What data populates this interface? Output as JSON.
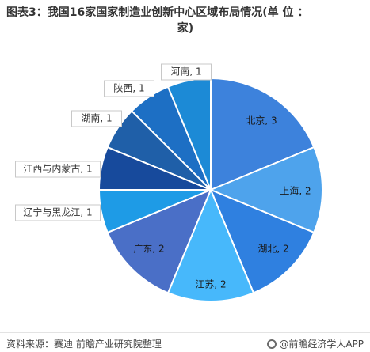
{
  "title_line1": "图表3：我国16家国家制造业创新中心区域布局情况(单 位 ：",
  "title_line2": "家)",
  "footer": {
    "source": "资料来源：赛迪 前瞻产业研究院整理",
    "brand": "@前瞻经济学人APP"
  },
  "chart_data": {
    "type": "pie",
    "title": "图表3：我国16家国家制造业创新中心区域布局情况(单 位 ：家)",
    "slices": [
      {
        "label": "北京",
        "value": 3,
        "color": "#3d82dc"
      },
      {
        "label": "上海",
        "value": 2,
        "color": "#4ea3ec"
      },
      {
        "label": "湖北",
        "value": 2,
        "color": "#2f80e0"
      },
      {
        "label": "江苏",
        "value": 2,
        "color": "#47b8fb"
      },
      {
        "label": "广东",
        "value": 2,
        "color": "#4a6fc7"
      },
      {
        "label": "辽宁与黑龙江",
        "value": 1,
        "color": "#1e9be6"
      },
      {
        "label": "江西与内蒙古",
        "value": 1,
        "color": "#174a9c"
      },
      {
        "label": "湖南",
        "value": 1,
        "color": "#1f5fa8"
      },
      {
        "label": "陕西",
        "value": 1,
        "color": "#1d6fc4"
      },
      {
        "label": "河南",
        "value": 1,
        "color": "#1c8ad6"
      }
    ]
  }
}
